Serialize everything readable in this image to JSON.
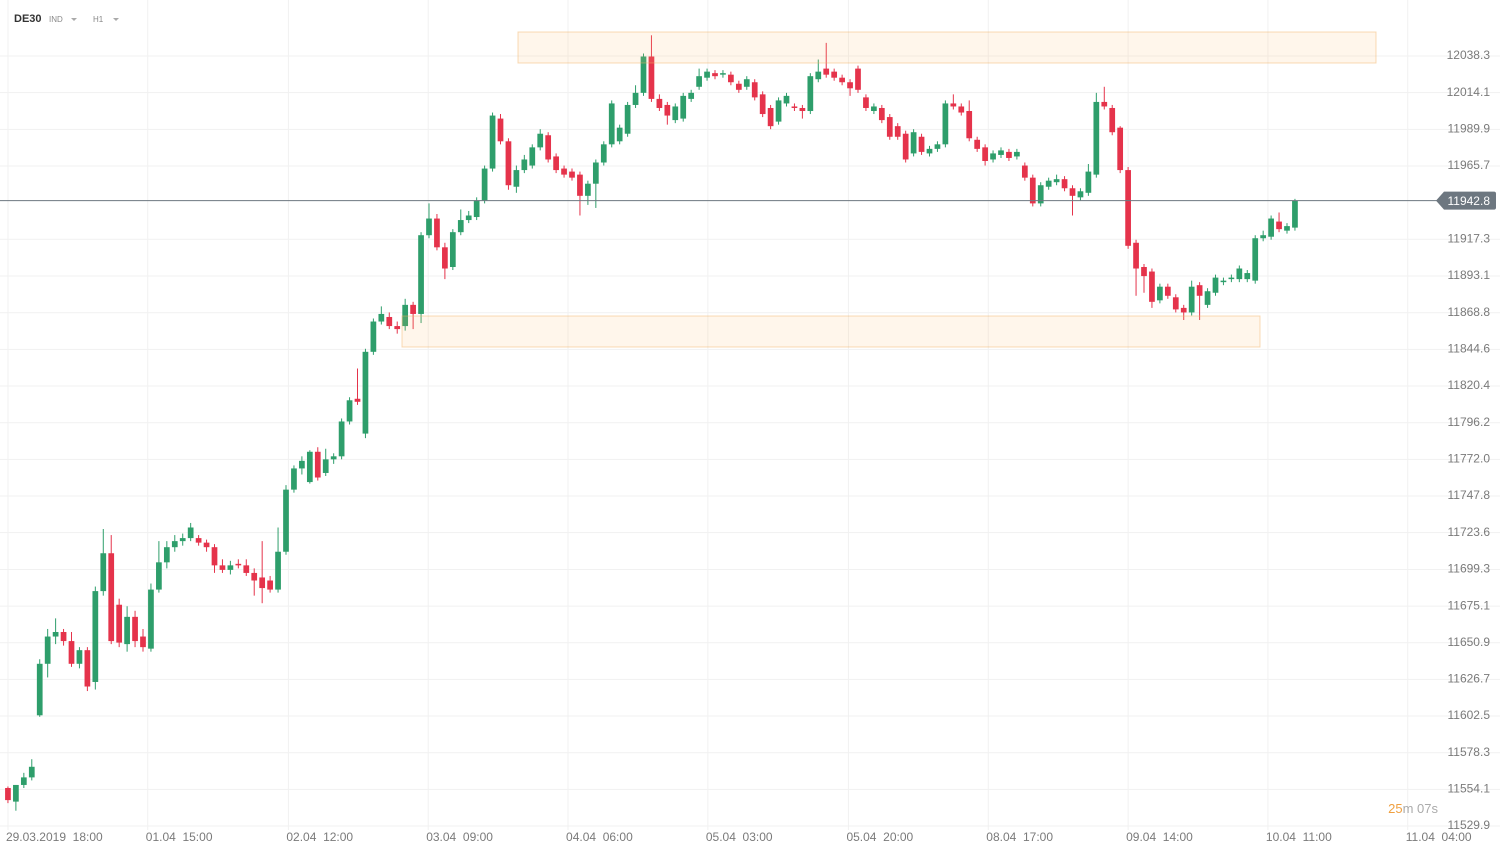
{
  "chart_data": {
    "type": "candlestick",
    "symbol": "DE30",
    "market": "IND",
    "interval": "H1",
    "up_color": "#2e9e6b",
    "down_color": "#e5334b",
    "last_price": 11942.8,
    "timer": {
      "value": "25",
      "unit_rest": "m 07s"
    },
    "ylim": [
      11529.9,
      12075.3
    ],
    "yticks": [
      12038.3,
      12014.1,
      11989.9,
      11965.7,
      11917.3,
      11893.1,
      11868.8,
      11844.6,
      11820.4,
      11796.2,
      {
        "value": 11772,
        "label": "11772.0"
      },
      11747.8,
      11723.6,
      11699.3,
      11675.1,
      11650.9,
      11626.7,
      11602.5,
      11578.3,
      11554.1,
      11529.9
    ],
    "xlim": [
      -1,
      179
    ],
    "xticks": [
      {
        "value": 0,
        "label": "29.03.2019  18:00"
      },
      {
        "value": 17.6,
        "label": "01.04  15:00"
      },
      {
        "value": 35.3,
        "label": "02.04  12:00"
      },
      {
        "value": 52.9,
        "label": "03.04  09:00"
      },
      {
        "value": 70.5,
        "label": "04.04  06:00"
      },
      {
        "value": 88.1,
        "label": "05.04  03:00"
      },
      {
        "value": 105.8,
        "label": "05.04  20:00"
      },
      {
        "value": 123.4,
        "label": "08.04  17:00"
      },
      {
        "value": 141,
        "label": "09.04  14:00"
      },
      {
        "value": 158.6,
        "label": "10.04  11:00"
      },
      {
        "value": 176.2,
        "label": "11.04  04:00"
      }
    ],
    "grid": true,
    "candles": [
      [
        11555,
        11556,
        11545,
        11547
      ],
      [
        11546,
        11557,
        11540,
        11557
      ],
      [
        11557,
        11565,
        11555,
        11562
      ],
      [
        11562,
        11574,
        11560,
        11569
      ],
      [
        11603,
        11640,
        11602,
        11637
      ],
      [
        11637,
        11660,
        11628,
        11655
      ],
      [
        11655,
        11667,
        11650,
        11658
      ],
      [
        11658,
        11660,
        11649,
        11652
      ],
      [
        11652,
        11658,
        11635,
        11637
      ],
      [
        11637,
        11648,
        11634,
        11646
      ],
      [
        11646,
        11648,
        11619,
        11622
      ],
      [
        11625,
        11688,
        11620,
        11685
      ],
      [
        11685,
        11726,
        11682,
        11710
      ],
      [
        11710,
        11722,
        11650,
        11652
      ],
      [
        11676,
        11680,
        11648,
        11651
      ],
      [
        11650,
        11675,
        11645,
        11668
      ],
      [
        11668,
        11672,
        11648,
        11652
      ],
      [
        11655,
        11660,
        11645,
        11648
      ],
      [
        11647,
        11690,
        11645,
        11686
      ],
      [
        11686,
        11718,
        11684,
        11704
      ],
      [
        11704,
        11718,
        11700,
        11714
      ],
      [
        11714,
        11722,
        11711,
        11718
      ],
      [
        11718,
        11723,
        11715,
        11720
      ],
      [
        11720,
        11730,
        11718,
        11727
      ],
      [
        11720,
        11722,
        11715,
        11717
      ],
      [
        11717,
        11719,
        11711,
        11714
      ],
      [
        11714,
        11716,
        11697,
        11702
      ],
      [
        11702,
        11706,
        11697,
        11699
      ],
      [
        11699,
        11705,
        11696,
        11702
      ],
      [
        11703,
        11706,
        11700,
        11702
      ],
      [
        11702,
        11706,
        11695,
        11697
      ],
      [
        11697,
        11700,
        11682,
        11692
      ],
      [
        11694,
        11718,
        11677,
        11687
      ],
      [
        11692,
        11695,
        11684,
        11686
      ],
      [
        11686,
        11727,
        11684,
        11711
      ],
      [
        11711,
        11755,
        11709,
        11752
      ],
      [
        11752,
        11768,
        11750,
        11766
      ],
      [
        11766,
        11774,
        11762,
        11771
      ],
      [
        11757,
        11778,
        11756,
        11777
      ],
      [
        11777,
        11780,
        11758,
        11760
      ],
      [
        11763,
        11779,
        11761,
        11772
      ],
      [
        11772,
        11776,
        11769,
        11774
      ],
      [
        11774,
        11799,
        11772,
        11797
      ],
      [
        11797,
        11813,
        11795,
        11811
      ],
      [
        11812,
        11832,
        11808,
        11810
      ],
      [
        11789,
        11845,
        11786,
        11843
      ],
      [
        11843,
        11865,
        11841,
        11863
      ],
      [
        11863,
        11873,
        11861,
        11868
      ],
      [
        11866,
        11869,
        11858,
        11860
      ],
      [
        11860,
        11863,
        11855,
        11858
      ],
      [
        11860,
        11878,
        11857,
        11874
      ],
      [
        11874,
        11876,
        11858,
        11868
      ],
      [
        11868,
        11922,
        11862,
        11920
      ],
      [
        11920,
        11941,
        11918,
        11931
      ],
      [
        11931,
        11934,
        11910,
        11912
      ],
      [
        11912,
        11915,
        11891,
        11898
      ],
      [
        11899,
        11924,
        11897,
        11922
      ],
      [
        11922,
        11937,
        11920,
        11930
      ],
      [
        11930,
        11936,
        11928,
        11933
      ],
      [
        11932,
        11945,
        11930,
        11943
      ],
      [
        11943,
        11966,
        11941,
        11964
      ],
      [
        11964,
        12001,
        11962,
        11999
      ],
      [
        11997,
        12000,
        11980,
        11982
      ],
      [
        11982,
        11984,
        11950,
        11953
      ],
      [
        11952,
        11966,
        11948,
        11963
      ],
      [
        11963,
        11973,
        11961,
        11970
      ],
      [
        11966,
        11980,
        11964,
        11978
      ],
      [
        11978,
        11990,
        11976,
        11987
      ],
      [
        11986,
        11988,
        11968,
        11970
      ],
      [
        11972,
        11974,
        11961,
        11963
      ],
      [
        11964,
        11966,
        11958,
        11960
      ],
      [
        11962,
        11964,
        11956,
        11958
      ],
      [
        11960,
        11962,
        11933,
        11946
      ],
      [
        11946,
        11956,
        11940,
        11954
      ],
      [
        11954,
        11970,
        11938,
        11968
      ],
      [
        11968,
        11982,
        11966,
        11980
      ],
      [
        11980,
        12009,
        11978,
        12007
      ],
      [
        11982,
        11993,
        11980,
        11991
      ],
      [
        11987,
        12008,
        11985,
        12006
      ],
      [
        12006,
        12019,
        12004,
        12014
      ],
      [
        12014,
        12040,
        12012,
        12038
      ],
      [
        12038,
        12052,
        12008,
        12010
      ],
      [
        12010,
        12013,
        12002,
        12004
      ],
      [
        12006,
        12008,
        11993,
        11999
      ],
      [
        11996,
        12007,
        11994,
        12005
      ],
      [
        11997,
        12014,
        11995,
        12012
      ],
      [
        12010,
        12016,
        12008,
        12014
      ],
      [
        12018,
        12030,
        12016,
        12025
      ],
      [
        12024,
        12030,
        12022,
        12028
      ],
      [
        12027,
        12029,
        12023,
        12025
      ],
      [
        12026,
        12029,
        12024,
        12027
      ],
      [
        12026,
        12028,
        12019,
        12021
      ],
      [
        12020,
        12022,
        12014,
        12016
      ],
      [
        12018,
        12025,
        12016,
        12023
      ],
      [
        12021,
        12023,
        12009,
        12011
      ],
      [
        12013,
        12015,
        11998,
        12000
      ],
      [
        12004,
        12006,
        11990,
        11992
      ],
      [
        11995,
        12011,
        11993,
        12009
      ],
      [
        12007,
        12014,
        12005,
        12012
      ],
      [
        12005,
        12007,
        12002,
        12004
      ],
      [
        12004,
        12006,
        11997,
        12002
      ],
      [
        12002,
        12027,
        12000,
        12025
      ],
      [
        12023,
        12036,
        12021,
        12028
      ],
      [
        12030,
        12047,
        12024,
        12026
      ],
      [
        12028,
        12030,
        12022,
        12024
      ],
      [
        12024,
        12026,
        12019,
        12021
      ],
      [
        12021,
        12023,
        12012,
        12017
      ],
      [
        12030,
        12032,
        12014,
        12016
      ],
      [
        12011,
        12013,
        12002,
        12004
      ],
      [
        12002,
        12007,
        12000,
        12005
      ],
      [
        12004,
        12006,
        11994,
        11996
      ],
      [
        11998,
        12000,
        11983,
        11985
      ],
      [
        11992,
        11994,
        11983,
        11985
      ],
      [
        11987,
        11989,
        11968,
        11970
      ],
      [
        11974,
        11990,
        11972,
        11988
      ],
      [
        11985,
        11987,
        11973,
        11975
      ],
      [
        11974,
        11979,
        11972,
        11977
      ],
      [
        11977,
        11982,
        11975,
        11980
      ],
      [
        11980,
        12009,
        11978,
        12007
      ],
      [
        12007,
        12013,
        12003,
        12005
      ],
      [
        12005,
        12007,
        11999,
        12001
      ],
      [
        12002,
        12009,
        11982,
        11984
      ],
      [
        11983,
        11985,
        11975,
        11977
      ],
      [
        11978,
        11980,
        11966,
        11969
      ],
      [
        11970,
        11976,
        11968,
        11974
      ],
      [
        11973,
        11978,
        11971,
        11976
      ],
      [
        11975,
        11977,
        11969,
        11971
      ],
      [
        11972,
        11977,
        11970,
        11975
      ],
      [
        11966,
        11968,
        11956,
        11958
      ],
      [
        11958,
        11960,
        11939,
        11941
      ],
      [
        11941,
        11955,
        11939,
        11953
      ],
      [
        11952,
        11958,
        11950,
        11956
      ],
      [
        11955,
        11960,
        11953,
        11957
      ],
      [
        11957,
        11959,
        11949,
        11951
      ],
      [
        11951,
        11953,
        11933,
        11946
      ],
      [
        11945,
        11951,
        11943,
        11949
      ],
      [
        11948,
        11967,
        11946,
        11962
      ],
      [
        11960,
        12014,
        11958,
        12008
      ],
      [
        12008,
        12018,
        12003,
        12005
      ],
      [
        12004,
        12006,
        11986,
        11988
      ],
      [
        11991,
        11992,
        11961,
        11963
      ],
      [
        11963,
        11965,
        11911,
        11913
      ],
      [
        11915,
        11917,
        11880,
        11898
      ],
      [
        11899,
        11901,
        11882,
        11893
      ],
      [
        11896,
        11898,
        11872,
        11876
      ],
      [
        11877,
        11888,
        11875,
        11886
      ],
      [
        11886,
        11888,
        11878,
        11880
      ],
      [
        11879,
        11881,
        11869,
        11871
      ],
      [
        11872,
        11874,
        11864,
        11869
      ],
      [
        11869,
        11890,
        11867,
        11886
      ],
      [
        11887,
        11889,
        11864,
        11880
      ],
      [
        11874,
        11885,
        11872,
        11883
      ],
      [
        11882,
        11894,
        11880,
        11892
      ],
      [
        11889,
        11892,
        11887,
        11890
      ],
      [
        11891,
        11894,
        11889,
        11892
      ],
      [
        11891,
        11900,
        11889,
        11898
      ],
      [
        11891,
        11897,
        11889,
        11895
      ],
      [
        11890,
        11920,
        11888,
        11918
      ],
      [
        11918,
        11923,
        11916,
        11920
      ],
      [
        11919,
        11933,
        11917,
        11931
      ],
      [
        11929,
        11935,
        11922,
        11924
      ],
      [
        11923,
        11928,
        11921,
        11926
      ],
      [
        11925,
        11944,
        11923,
        11942.8
      ]
    ]
  }
}
